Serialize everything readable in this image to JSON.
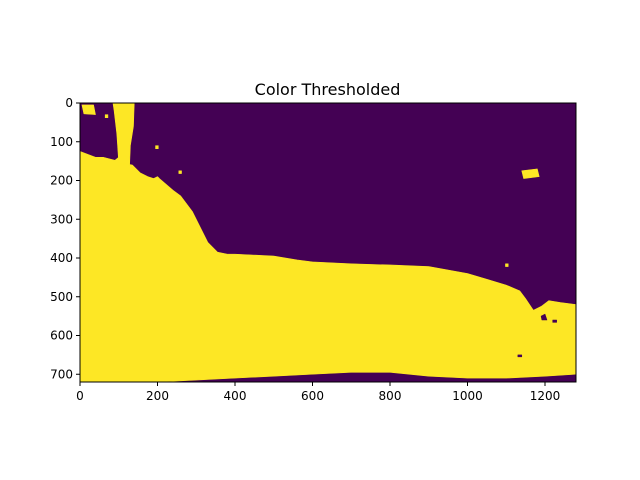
{
  "chart_data": {
    "type": "image",
    "title": "Color Thresholded",
    "xlabel": "",
    "ylabel": "",
    "xlim": [
      0,
      1280
    ],
    "ylim": [
      720,
      0
    ],
    "x_ticks": [
      0,
      200,
      400,
      600,
      800,
      1000,
      1200
    ],
    "x_tick_labels": [
      "0",
      "200",
      "400",
      "600",
      "800",
      "1000",
      "1200"
    ],
    "y_ticks": [
      0,
      100,
      200,
      300,
      400,
      500,
      600,
      700
    ],
    "y_tick_labels": [
      "0",
      "100",
      "200",
      "300",
      "400",
      "500",
      "600",
      "700"
    ],
    "colormap": "viridis",
    "colors": {
      "low": "#440154",
      "high": "#fde725"
    },
    "image_size": {
      "width": 1280,
      "height": 720
    },
    "regions": [
      {
        "name": "yellow-main",
        "value": 1,
        "polygon": [
          [
            0,
            125
          ],
          [
            40,
            140
          ],
          [
            60,
            140
          ],
          [
            90,
            148
          ],
          [
            100,
            140
          ],
          [
            110,
            155
          ],
          [
            135,
            160
          ],
          [
            155,
            180
          ],
          [
            175,
            190
          ],
          [
            190,
            195
          ],
          [
            200,
            190
          ],
          [
            205,
            195
          ],
          [
            240,
            225
          ],
          [
            260,
            240
          ],
          [
            290,
            280
          ],
          [
            310,
            320
          ],
          [
            330,
            360
          ],
          [
            355,
            385
          ],
          [
            380,
            390
          ],
          [
            400,
            390
          ],
          [
            500,
            395
          ],
          [
            560,
            405
          ],
          [
            600,
            410
          ],
          [
            700,
            415
          ],
          [
            800,
            418
          ],
          [
            900,
            422
          ],
          [
            1000,
            440
          ],
          [
            1050,
            455
          ],
          [
            1100,
            470
          ],
          [
            1135,
            485
          ],
          [
            1150,
            505
          ],
          [
            1170,
            535
          ],
          [
            1190,
            525
          ],
          [
            1210,
            510
          ],
          [
            1240,
            515
          ],
          [
            1280,
            520
          ],
          [
            1280,
            700
          ],
          [
            1200,
            705
          ],
          [
            1100,
            710
          ],
          [
            1000,
            710
          ],
          [
            900,
            705
          ],
          [
            800,
            695
          ],
          [
            700,
            695
          ],
          [
            600,
            700
          ],
          [
            500,
            705
          ],
          [
            400,
            710
          ],
          [
            300,
            715
          ],
          [
            200,
            720
          ],
          [
            0,
            720
          ]
        ]
      },
      {
        "name": "yellow-vertical-strip",
        "value": 1,
        "polygon": [
          [
            85,
            0
          ],
          [
            140,
            0
          ],
          [
            138,
            60
          ],
          [
            130,
            110
          ],
          [
            128,
            160
          ],
          [
            100,
            155
          ],
          [
            95,
            80
          ],
          [
            88,
            20
          ]
        ]
      },
      {
        "name": "yellow-top-left-blob",
        "value": 1,
        "polygon": [
          [
            5,
            5
          ],
          [
            35,
            5
          ],
          [
            40,
            30
          ],
          [
            10,
            28
          ]
        ]
      },
      {
        "name": "yellow-top-left-speck",
        "value": 1,
        "polygon": [
          [
            65,
            30
          ],
          [
            72,
            30
          ],
          [
            72,
            38
          ],
          [
            65,
            38
          ]
        ]
      },
      {
        "name": "yellow-small-blob-right",
        "value": 1,
        "polygon": [
          [
            1140,
            175
          ],
          [
            1180,
            170
          ],
          [
            1185,
            190
          ],
          [
            1145,
            195
          ]
        ]
      },
      {
        "name": "yellow-speck-top-center-left",
        "value": 1,
        "polygon": [
          [
            195,
            110
          ],
          [
            202,
            110
          ],
          [
            202,
            118
          ],
          [
            195,
            118
          ]
        ]
      },
      {
        "name": "yellow-speck-mid-left",
        "value": 1,
        "polygon": [
          [
            255,
            175
          ],
          [
            262,
            175
          ],
          [
            262,
            182
          ],
          [
            255,
            182
          ]
        ]
      },
      {
        "name": "yellow-speck-mid-right",
        "value": 1,
        "polygon": [
          [
            1098,
            415
          ],
          [
            1105,
            415
          ],
          [
            1105,
            422
          ],
          [
            1098,
            422
          ]
        ]
      },
      {
        "name": "purple-bottom-hole",
        "value": 0,
        "polygon": [
          [
            1190,
            550
          ],
          [
            1200,
            545
          ],
          [
            1205,
            560
          ],
          [
            1192,
            560
          ]
        ]
      },
      {
        "name": "purple-bottom-speck-1",
        "value": 0,
        "polygon": [
          [
            1130,
            650
          ],
          [
            1140,
            650
          ],
          [
            1140,
            655
          ],
          [
            1130,
            655
          ]
        ]
      },
      {
        "name": "purple-bottom-speck-2",
        "value": 0,
        "polygon": [
          [
            1220,
            560
          ],
          [
            1230,
            560
          ],
          [
            1230,
            566
          ],
          [
            1220,
            566
          ]
        ]
      }
    ]
  }
}
